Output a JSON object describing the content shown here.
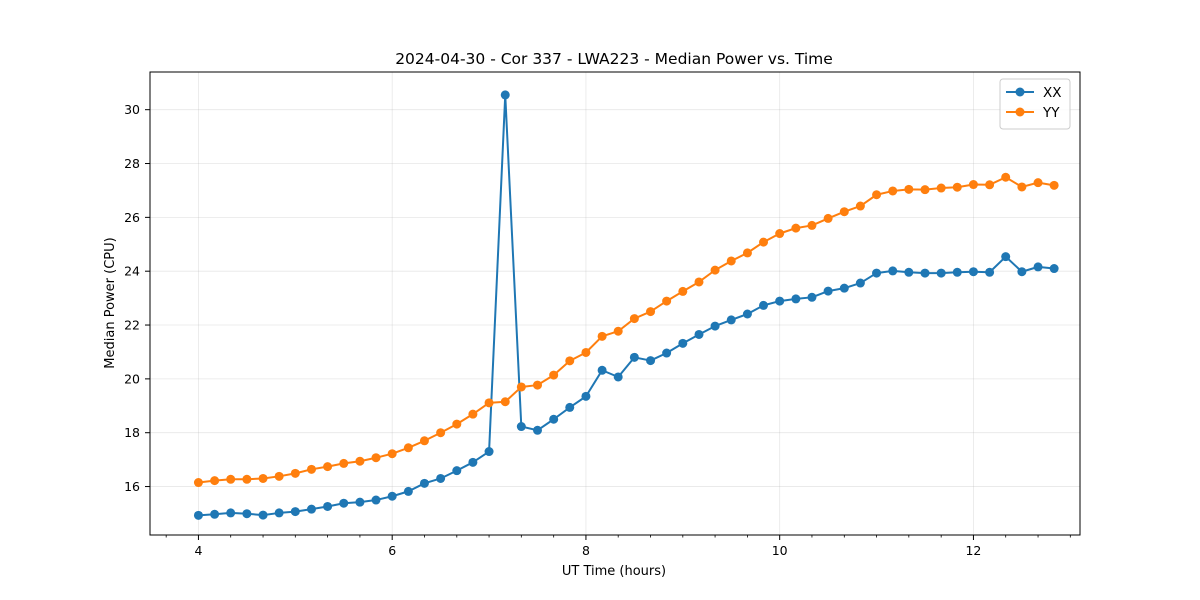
{
  "chart_data": {
    "type": "line",
    "title": "2024-04-30 - Cor 337 - LWA223 - Median Power vs. Time",
    "xlabel": "UT Time (hours)",
    "ylabel": "Median Power (CPU)",
    "xlim": [
      3.5,
      13.1
    ],
    "ylim": [
      14.2,
      31.4
    ],
    "xticks": [
      4,
      6,
      8,
      10,
      12
    ],
    "xticks_minor": [
      3.667,
      4.333,
      4.667,
      5.0,
      5.333,
      5.667,
      6.333,
      6.667,
      7.0,
      7.333,
      7.667,
      8.333,
      8.667,
      9.0,
      9.333,
      9.667,
      10.333,
      10.667,
      11.0,
      11.333,
      11.667,
      12.333,
      12.667,
      13.0
    ],
    "yticks": [
      16,
      18,
      20,
      22,
      24,
      26,
      28,
      30
    ],
    "grid": true,
    "legend_position": "top-right",
    "x": [
      4.0,
      4.167,
      4.333,
      4.5,
      4.667,
      4.833,
      5.0,
      5.167,
      5.333,
      5.5,
      5.667,
      5.833,
      6.0,
      6.167,
      6.333,
      6.5,
      6.667,
      6.833,
      7.0,
      7.167,
      7.333,
      7.5,
      7.667,
      7.833,
      8.0,
      8.167,
      8.333,
      8.5,
      8.667,
      8.833,
      9.0,
      9.167,
      9.333,
      9.5,
      9.667,
      9.833,
      10.0,
      10.167,
      10.333,
      10.5,
      10.667,
      10.833,
      11.0,
      11.167,
      11.333,
      11.5,
      11.667,
      11.833,
      12.0,
      12.167,
      12.333,
      12.5,
      12.667,
      12.833
    ],
    "series": [
      {
        "name": "XX",
        "color": "#1f77b4",
        "values": [
          14.93,
          14.97,
          15.02,
          14.99,
          14.94,
          15.02,
          15.07,
          15.16,
          15.26,
          15.38,
          15.42,
          15.5,
          15.64,
          15.82,
          16.12,
          16.3,
          16.59,
          16.9,
          17.3,
          30.55,
          18.23,
          18.09,
          18.5,
          18.94,
          19.35,
          20.32,
          20.07,
          20.8,
          20.68,
          20.96,
          21.32,
          21.65,
          21.96,
          22.19,
          22.41,
          22.73,
          22.89,
          22.97,
          23.03,
          23.26,
          23.37,
          23.56,
          23.93,
          24.01,
          23.96,
          23.93,
          23.93,
          23.96,
          23.98,
          23.96,
          24.54,
          23.98,
          24.16,
          24.1
        ]
      },
      {
        "name": "YY",
        "color": "#ff7f0e",
        "values": [
          16.15,
          16.22,
          16.27,
          16.27,
          16.3,
          16.38,
          16.49,
          16.64,
          16.74,
          16.86,
          16.94,
          17.07,
          17.22,
          17.44,
          17.7,
          18.0,
          18.32,
          18.69,
          19.11,
          19.15,
          19.7,
          19.77,
          20.14,
          20.67,
          20.98,
          21.58,
          21.77,
          22.24,
          22.5,
          22.89,
          23.25,
          23.6,
          24.04,
          24.38,
          24.68,
          25.08,
          25.4,
          25.6,
          25.7,
          25.96,
          26.21,
          26.42,
          26.84,
          26.98,
          27.04,
          27.03,
          27.09,
          27.12,
          27.22,
          27.21,
          27.49,
          27.13,
          27.29,
          27.19
        ]
      }
    ]
  }
}
